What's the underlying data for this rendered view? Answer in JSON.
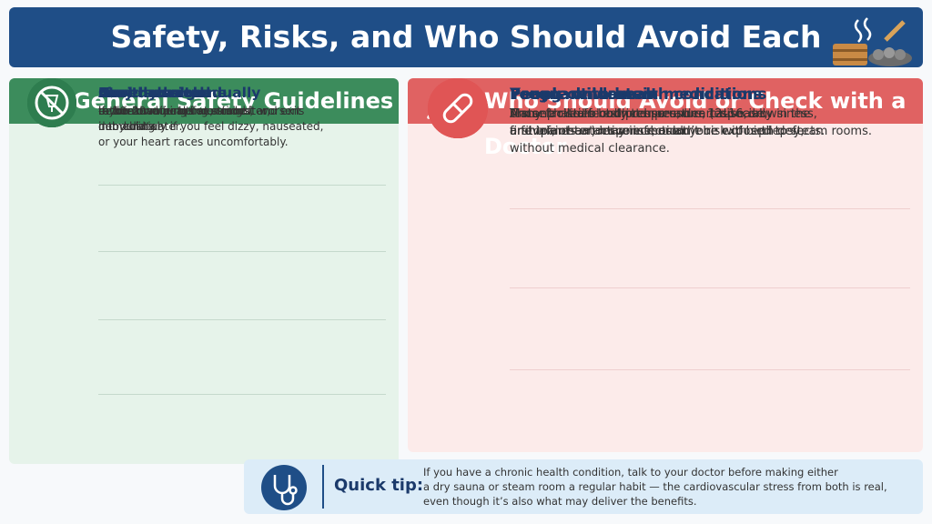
{
  "header": {
    "title": "Safety, Risks, and Who Should Avoid Each"
  },
  "guidelines": {
    "title": "General Safety Guidelines",
    "items": [
      {
        "heading": "Limit sessions",
        "lines": [
          "to 10–20 minutes at a time."
        ]
      },
      {
        "heading": "Stay hydrated",
        "lines": [
          "— drink water before and after,",
          "not during."
        ]
      },
      {
        "heading": "Cool down gradually",
        "lines": [
          "rather than jumping straight",
          "into cold water."
        ]
      },
      {
        "heading": "Never use alone",
        "lines": [
          "if you have health concerns, and exit",
          "immediately if you feel dizzy, nauseated,",
          "or your heart races uncomfortably."
        ]
      },
      {
        "heading": "Avoid alcohol",
        "lines": [
          "before or during use, since it worsens",
          "dehydration."
        ]
      }
    ]
  },
  "avoid": {
    "title": "Who Should Avoid or Check with a Doctor",
    "items": [
      {
        "heading": "Pregnant women",
        "lines": [
          "A steep rise in body temperature (especially in the",
          "first trimester) may increase the risk of birth defects."
        ]
      },
      {
        "heading": "People with health conditions",
        "lines": [
          "Uncontrolled blood pressure, heart disease,",
          "a fever, or an active infection."
        ]
      },
      {
        "heading": "Young children",
        "lines": [
          "Many facilities restrict use under 12–16,",
          "and infants under one shouldn’t be exposed to steam rooms."
        ]
      },
      {
        "heading": "People on certain medications",
        "lines": [
          "Those that affect blood pressure, cause drowsiness,",
          "or impair heat response, or anyone with epilepsy,",
          "without medical clearance."
        ]
      }
    ]
  },
  "tip": {
    "label": "Quick tip:",
    "lines": [
      "If you have a chronic health condition, talk to your doctor before making either",
      "a dry sauna or steam room a regular habit — the cardiovascular stress from both is real,",
      "even though it’s also what may deliver the benefits."
    ]
  }
}
